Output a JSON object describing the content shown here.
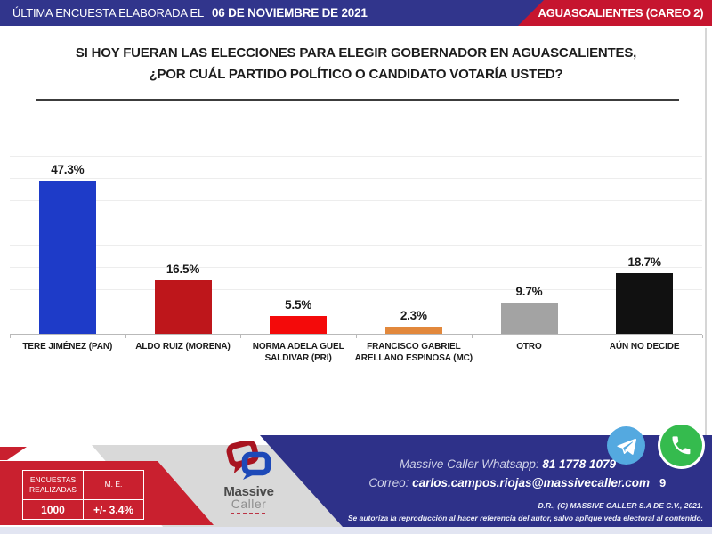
{
  "header": {
    "left_label": "ÚLTIMA ENCUESTA ELABORADA EL",
    "left_date": "06 DE NOVIEMBRE DE 2021",
    "right_label": "AGUASCALIENTES (CAREO 2)"
  },
  "question": {
    "line1": "SI HOY FUERAN LAS ELECCIONES PARA ELEGIR GOBERNADOR EN AGUASCALIENTES,",
    "line2": "¿POR CUÁL PARTIDO POLÍTICO O CANDIDATO VOTARÍA USTED?"
  },
  "chart_data": {
    "type": "bar",
    "categories": [
      "TERE JIMÉNEZ (PAN)",
      "ALDO RUIZ (MORENA)",
      "NORMA ADELA GUEL SALDIVAR (PRI)",
      "FRANCISCO GABRIEL ARELLANO ESPINOSA (MC)",
      "OTRO",
      "AÚN NO DECIDE"
    ],
    "values": [
      47.3,
      16.5,
      5.5,
      2.3,
      9.7,
      18.7
    ],
    "value_labels": [
      "47.3%",
      "16.5%",
      "5.5%",
      "2.3%",
      "9.7%",
      "18.7%"
    ],
    "bar_colors": [
      "#1e3bc8",
      "#be161b",
      "#f40a0a",
      "#e2883c",
      "#a3a3a3",
      "#111111"
    ],
    "title": "",
    "xlabel": "",
    "ylabel": "",
    "ylim": [
      0,
      50
    ],
    "grid": true,
    "legend": "none"
  },
  "stats_table": {
    "col1_header": "ENCUESTAS REALIZADAS",
    "col2_header": "M. E.",
    "col1_value": "1000",
    "col2_value": "+/- 3.4%"
  },
  "logo": {
    "line1": "Massive",
    "line2": "Caller"
  },
  "footer": {
    "whatsapp_label": "Massive Caller Whatsapp:",
    "whatsapp_number": "81 1778 1079",
    "email_label": "Correo:",
    "email": "carlos.campos.riojas@massivecaller.com",
    "page_number": "9",
    "copyright": "D.R., (C) MASSIVE CALLER S.A DE C.V., 2021.",
    "disclaimer": "Se autoriza la reproducción al hacer referencia del autor, salvo aplique veda electoral al contenido."
  },
  "colors": {
    "header_blue": "#31358c",
    "header_red": "#c6152f",
    "footer_blue": "#2e3189",
    "footer_red": "#c9202f",
    "telegram_blue": "#54a9e0",
    "whatsapp_green": "#35bb4e"
  }
}
